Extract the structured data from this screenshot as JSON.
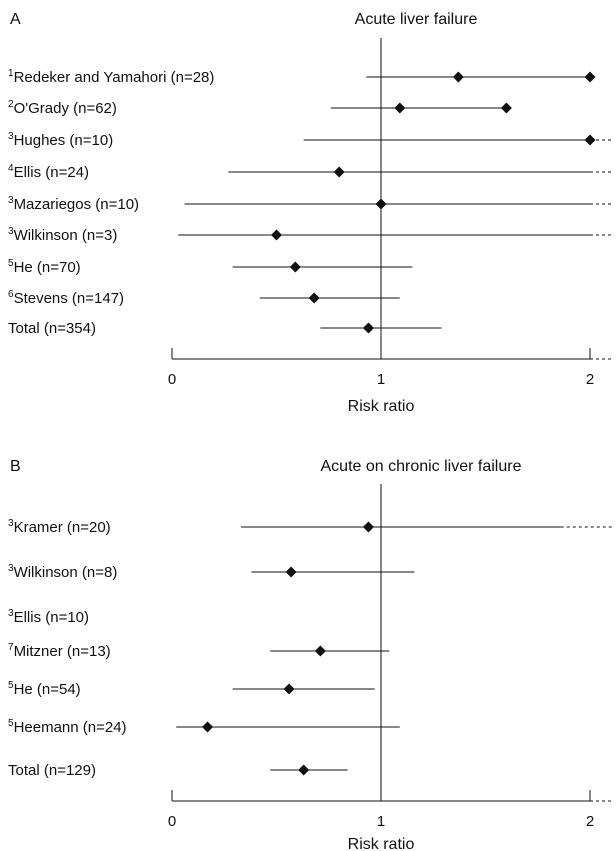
{
  "chart_data": [
    {
      "type": "forest",
      "panel": "A",
      "title": "Acute liver failure",
      "xlabel": "Risk ratio",
      "xlim": [
        0,
        2
      ],
      "xticks": [
        "0",
        "1",
        "2"
      ],
      "reference_line": 1,
      "studies": [
        {
          "ref": "1",
          "label": "Redeker and Yamahori (n=28)",
          "estimate": 1.37,
          "lower": 0.93,
          "upper": 2.0,
          "upper_open": false,
          "extra_point": 2.0
        },
        {
          "ref": "2",
          "label": "O'Grady (n=62)",
          "estimate": 1.09,
          "lower": 0.76,
          "upper": 1.6,
          "upper_open": false,
          "extra_point": 1.6
        },
        {
          "ref": "3",
          "label": "Hughes (n=10)",
          "estimate": 2.0,
          "lower": 0.63,
          "upper": 2.0,
          "upper_open": true
        },
        {
          "ref": "4",
          "label": "Ellis (n=24)",
          "estimate": 0.8,
          "lower": 0.27,
          "upper": 2.0,
          "upper_open": true
        },
        {
          "ref": "3",
          "label": "Mazariegos (n=10)",
          "estimate": 1.0,
          "lower": 0.06,
          "upper": 2.0,
          "upper_open": true
        },
        {
          "ref": "3",
          "label": "Wilkinson (n=3)",
          "estimate": 0.5,
          "lower": 0.03,
          "upper": 2.0,
          "upper_open": true
        },
        {
          "ref": "5",
          "label": "He (n=70)",
          "estimate": 0.59,
          "lower": 0.29,
          "upper": 1.15,
          "upper_open": false
        },
        {
          "ref": "6",
          "label": "Stevens (n=147)",
          "estimate": 0.68,
          "lower": 0.42,
          "upper": 1.09,
          "upper_open": false
        },
        {
          "ref": "",
          "label": "Total (n=354)",
          "estimate": 0.94,
          "lower": 0.71,
          "upper": 1.29,
          "upper_open": false
        }
      ]
    },
    {
      "type": "forest",
      "panel": "B",
      "title": "Acute on chronic liver failure",
      "xlabel": "Risk ratio",
      "xlim": [
        0,
        2
      ],
      "xticks": [
        "0",
        "1",
        "2"
      ],
      "reference_line": 1,
      "studies": [
        {
          "ref": "3",
          "label": "Kramer (n=20)",
          "estimate": 0.94,
          "lower": 0.33,
          "upper": 1.86,
          "upper_open": true
        },
        {
          "ref": "3",
          "label": "Wilkinson (n=8)",
          "estimate": 0.57,
          "lower": 0.38,
          "upper": 1.16,
          "upper_open": false
        },
        {
          "ref": "3",
          "label": "Ellis (n=10)",
          "estimate": null,
          "lower": null,
          "upper": null,
          "upper_open": false
        },
        {
          "ref": "7",
          "label": "Mitzner (n=13)",
          "estimate": 0.71,
          "lower": 0.47,
          "upper": 1.04,
          "upper_open": false
        },
        {
          "ref": "5",
          "label": "He (n=54)",
          "estimate": 0.56,
          "lower": 0.29,
          "upper": 0.97,
          "upper_open": false
        },
        {
          "ref": "5",
          "label": "Heemann (n=24)",
          "estimate": 0.17,
          "lower": 0.02,
          "upper": 1.09,
          "upper_open": false
        },
        {
          "ref": "",
          "label": "Total (n=129)",
          "estimate": 0.63,
          "lower": 0.47,
          "upper": 0.84,
          "upper_open": false
        }
      ]
    }
  ]
}
